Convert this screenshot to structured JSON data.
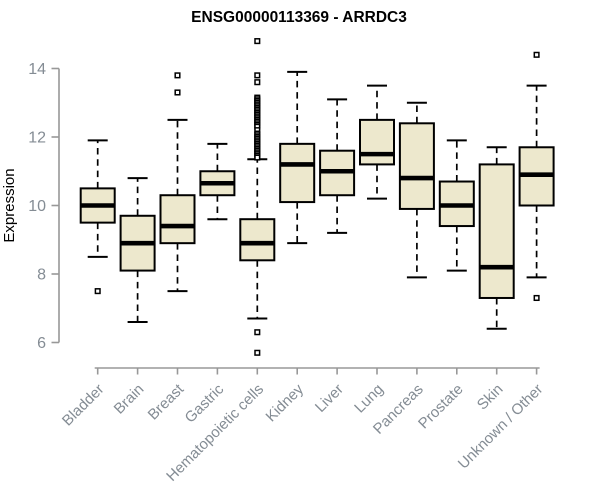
{
  "chart_data": {
    "type": "boxplot",
    "title": "ENSG00000113369 - ARRDC3",
    "ylabel": "Expression",
    "xlabel": "",
    "ylim": [
      6,
      14
    ],
    "yticks": [
      6,
      8,
      10,
      12,
      14
    ],
    "grid": false,
    "legend": "none",
    "categories": [
      "Bladder",
      "Brain",
      "Breast",
      "Gastric",
      "Hematopoietic cells",
      "Kidney",
      "Liver",
      "Lung",
      "Pancreas",
      "Prostate",
      "Skin",
      "Unknown / Other"
    ],
    "series": [
      {
        "name": "Bladder",
        "whisker_low": 8.5,
        "q1": 9.5,
        "median": 10.0,
        "q3": 10.5,
        "whisker_high": 11.9,
        "outliers": [
          7.5
        ]
      },
      {
        "name": "Brain",
        "whisker_low": 6.6,
        "q1": 8.1,
        "median": 8.9,
        "q3": 9.7,
        "whisker_high": 10.8,
        "outliers": []
      },
      {
        "name": "Breast",
        "whisker_low": 7.5,
        "q1": 8.9,
        "median": 9.4,
        "q3": 10.3,
        "whisker_high": 12.5,
        "outliers": [
          13.8,
          13.3
        ]
      },
      {
        "name": "Gastric",
        "whisker_low": 9.6,
        "q1": 10.3,
        "median": 10.65,
        "q3": 11.0,
        "whisker_high": 11.8,
        "outliers": []
      },
      {
        "name": "Hematopoietic cells",
        "whisker_low": 6.7,
        "q1": 8.4,
        "median": 8.9,
        "q3": 9.6,
        "whisker_high": 11.35,
        "outliers": [
          14.8,
          13.8,
          13.6,
          13.15,
          13.1,
          13.05,
          13.0,
          12.95,
          12.9,
          12.85,
          12.8,
          12.75,
          12.7,
          12.65,
          12.6,
          12.55,
          12.5,
          12.45,
          12.4,
          12.35,
          12.3,
          12.2,
          12.1,
          12.05,
          12.0,
          11.95,
          11.9,
          11.85,
          11.8,
          11.75,
          11.7,
          11.65,
          11.6,
          11.55,
          11.5,
          11.45,
          11.4,
          6.3,
          5.7
        ]
      },
      {
        "name": "Kidney",
        "whisker_low": 8.9,
        "q1": 10.1,
        "median": 11.2,
        "q3": 11.8,
        "whisker_high": 13.9,
        "outliers": []
      },
      {
        "name": "Liver",
        "whisker_low": 9.2,
        "q1": 10.3,
        "median": 11.0,
        "q3": 11.6,
        "whisker_high": 13.1,
        "outliers": []
      },
      {
        "name": "Lung",
        "whisker_low": 10.2,
        "q1": 11.2,
        "median": 11.5,
        "q3": 12.5,
        "whisker_high": 13.5,
        "outliers": []
      },
      {
        "name": "Pancreas",
        "whisker_low": 7.9,
        "q1": 9.9,
        "median": 10.8,
        "q3": 12.4,
        "whisker_high": 13.0,
        "outliers": []
      },
      {
        "name": "Prostate",
        "whisker_low": 8.1,
        "q1": 9.4,
        "median": 10.0,
        "q3": 10.7,
        "whisker_high": 11.9,
        "outliers": []
      },
      {
        "name": "Skin",
        "whisker_low": 6.4,
        "q1": 7.3,
        "median": 8.2,
        "q3": 11.2,
        "whisker_high": 11.7,
        "outliers": []
      },
      {
        "name": "Unknown / Other",
        "whisker_low": 7.9,
        "q1": 10.0,
        "median": 10.9,
        "q3": 11.7,
        "whisker_high": 13.5,
        "outliers": [
          14.4,
          7.3
        ]
      }
    ],
    "style": {
      "background": "#FFFFFF",
      "box_fill": "#EDE8CD",
      "box_stroke": "#000000",
      "median_color": "#000000",
      "whisker_color": "#000000",
      "outlier_fill": "#FFFFFF",
      "outlier_stroke": "#000000",
      "axis_color": "#989898",
      "tick_label_color": "#848C94",
      "title_color": "#000000"
    }
  }
}
